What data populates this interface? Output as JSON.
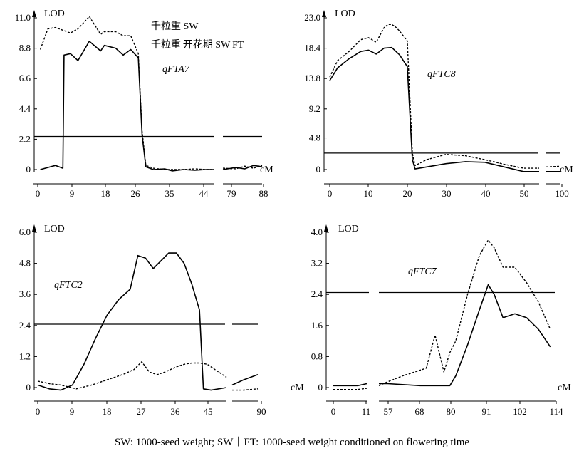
{
  "caption": "SW: 1000-seed weight; SW丨FT: 1000-seed weight conditioned on flowering time",
  "colors": {
    "ink": "#000000",
    "background": "#ffffff"
  },
  "legend": {
    "solid": "千粒重 SW",
    "dashed": "千粒重|开花期 SW|FT"
  },
  "chart_data": [
    {
      "type": "line",
      "qtl": "qFTA7",
      "ylabel": "LOD",
      "xlabel": "cM",
      "yticks": [
        "11.0",
        "8.8",
        "6.6",
        "4.4",
        "2.2",
        "0"
      ],
      "xticks": [
        "0",
        "9",
        "18",
        "26",
        "35",
        "44",
        "79",
        "88"
      ],
      "threshold": 2.4,
      "series": [
        {
          "style": "solid",
          "segments": [
            {
              "x": [
                0,
                4,
                6,
                6.3,
                8,
                10,
                13,
                16,
                17,
                20,
                22,
                24,
                26,
                27,
                28,
                30,
                33,
                35,
                38,
                41,
                44,
                46
              ],
              "y": [
                0,
                0.3,
                0.1,
                8.3,
                8.4,
                7.9,
                9.3,
                8.6,
                9,
                8.8,
                8.3,
                8.7,
                8.1,
                2.5,
                0.2,
                0,
                0.05,
                -0.1,
                0,
                -0.05,
                0,
                0
              ]
            },
            {
              "x": [
                79,
                82,
                84,
                86,
                88
              ],
              "y": [
                0,
                0.15,
                0.05,
                0.3,
                0.2
              ]
            }
          ]
        },
        {
          "style": "dashed",
          "segments": [
            {
              "x": [
                0,
                2,
                4,
                6,
                8,
                10,
                13,
                16,
                17,
                20,
                22,
                24,
                26,
                27,
                28,
                30,
                33,
                35,
                38,
                41,
                44,
                46
              ],
              "y": [
                8.7,
                10.2,
                10.3,
                10.1,
                9.9,
                10.2,
                11.1,
                9.8,
                10,
                10,
                9.7,
                9.7,
                8.4,
                2.8,
                0.3,
                0.1,
                0,
                0,
                0,
                0.05,
                0,
                0
              ]
            },
            {
              "x": [
                79,
                82,
                84,
                86,
                88
              ],
              "y": [
                0.1,
                0.05,
                0.25,
                0.1,
                0.3
              ]
            }
          ]
        }
      ]
    },
    {
      "type": "line",
      "qtl": "qFTC8",
      "ylabel": "LOD",
      "xlabel": "cM",
      "yticks": [
        "23.0",
        "18.4",
        "13.8",
        "9.2",
        "4.8",
        "0"
      ],
      "xticks": [
        "0",
        "10",
        "20",
        "30",
        "40",
        "50",
        "100"
      ],
      "threshold": 2.5,
      "series": [
        {
          "style": "solid",
          "segments": [
            {
              "x": [
                0,
                2,
                5,
                8,
                10,
                12,
                14,
                16,
                18,
                20,
                21.3,
                22,
                25,
                30,
                35,
                40,
                45,
                50,
                54
              ],
              "y": [
                13.5,
                15.4,
                16.8,
                17.9,
                18.1,
                17.5,
                18.4,
                18.5,
                17.4,
                15.6,
                1.5,
                0.1,
                0.4,
                0.9,
                1.2,
                1.1,
                0.4,
                -0.3,
                -0.3
              ]
            },
            {
              "x": [
                100,
                104
              ],
              "y": [
                -0.3,
                -0.3
              ]
            }
          ]
        },
        {
          "style": "dashed",
          "segments": [
            {
              "x": [
                0,
                2,
                5,
                8,
                10,
                12,
                14,
                15,
                16,
                17,
                18,
                20,
                21.3,
                22,
                25,
                30,
                35,
                40,
                45,
                50,
                54
              ],
              "y": [
                14,
                16.5,
                17.9,
                19.7,
                20,
                19.3,
                21.5,
                22,
                22,
                21.6,
                21,
                19.5,
                2.5,
                0.6,
                1.5,
                2.3,
                2.1,
                1.5,
                0.8,
                0.2,
                0.2
              ]
            },
            {
              "x": [
                100,
                104
              ],
              "y": [
                0.4,
                0.5
              ]
            }
          ]
        }
      ]
    },
    {
      "type": "line",
      "qtl": "qFTC2",
      "ylabel": "LOD",
      "xlabel": "",
      "yticks": [
        "6.0",
        "4.8",
        "3.6",
        "2.4",
        "1.2",
        "0"
      ],
      "xticks": [
        "0",
        "9",
        "18",
        "27",
        "36",
        "45",
        "90"
      ],
      "threshold": 2.45,
      "series": [
        {
          "style": "solid",
          "segments": [
            {
              "x": [
                0,
                3,
                6,
                9,
                12,
                15,
                18,
                21,
                24,
                26,
                28,
                30,
                32,
                34,
                36,
                38,
                40,
                42,
                43,
                45,
                49
              ],
              "y": [
                0.1,
                -0.05,
                -0.1,
                0.1,
                0.9,
                1.9,
                2.8,
                3.4,
                3.8,
                5.1,
                5,
                4.6,
                4.9,
                5.2,
                5.2,
                4.8,
                4,
                3,
                -0.05,
                -0.1,
                0
              ]
            },
            {
              "x": [
                81,
                85,
                90
              ],
              "y": [
                0.1,
                0.3,
                0.5
              ]
            }
          ]
        },
        {
          "style": "dashed",
          "segments": [
            {
              "x": [
                0,
                3,
                6,
                10,
                14,
                18,
                22,
                25,
                27,
                29,
                31,
                33,
                36,
                38,
                40,
                42,
                44,
                46,
                49
              ],
              "y": [
                0.25,
                0.15,
                0.1,
                -0.05,
                0.1,
                0.3,
                0.5,
                0.7,
                1,
                0.6,
                0.5,
                0.6,
                0.8,
                0.9,
                0.95,
                0.95,
                0.9,
                0.7,
                0.4
              ]
            },
            {
              "x": [
                81,
                85,
                90
              ],
              "y": [
                -0.1,
                -0.1,
                -0.05
              ]
            }
          ]
        }
      ]
    },
    {
      "type": "line",
      "qtl": "qFTC7",
      "ylabel": "LOD",
      "xlabel": "cM",
      "yticks": [
        "4.0",
        "3.2",
        "2.4",
        "1.6",
        "0.8",
        "0"
      ],
      "xticks": [
        "0",
        "11",
        "57",
        "68",
        "80",
        "91",
        "102",
        "114"
      ],
      "threshold": 2.45,
      "series": [
        {
          "style": "solid",
          "segments": [
            {
              "x": [
                0,
                4,
                8,
                11
              ],
              "y": [
                0.05,
                0.05,
                0.05,
                0.1
              ]
            },
            {
              "x": [
                54,
                57,
                68,
                78,
                80,
                84,
                88,
                91,
                93,
                96,
                100,
                104,
                108,
                112
              ],
              "y": [
                0.1,
                0.1,
                0.05,
                0.05,
                0.3,
                1.1,
                2,
                2.65,
                2.4,
                1.8,
                1.9,
                1.8,
                1.5,
                1.05
              ]
            }
          ]
        },
        {
          "style": "dashed",
          "segments": [
            {
              "x": [
                0,
                4,
                8,
                11
              ],
              "y": [
                -0.05,
                -0.05,
                -0.05,
                -0.02
              ]
            },
            {
              "x": [
                54,
                57,
                62,
                66,
                70,
                73,
                76,
                78,
                80,
                84,
                88,
                91,
                93,
                96,
                100,
                104,
                108,
                112
              ],
              "y": [
                0.05,
                0.15,
                0.3,
                0.4,
                0.5,
                1.35,
                0.4,
                0.9,
                1.2,
                2.4,
                3.4,
                3.8,
                3.6,
                3.1,
                3.1,
                2.7,
                2.2,
                1.5
              ]
            }
          ]
        }
      ]
    }
  ]
}
